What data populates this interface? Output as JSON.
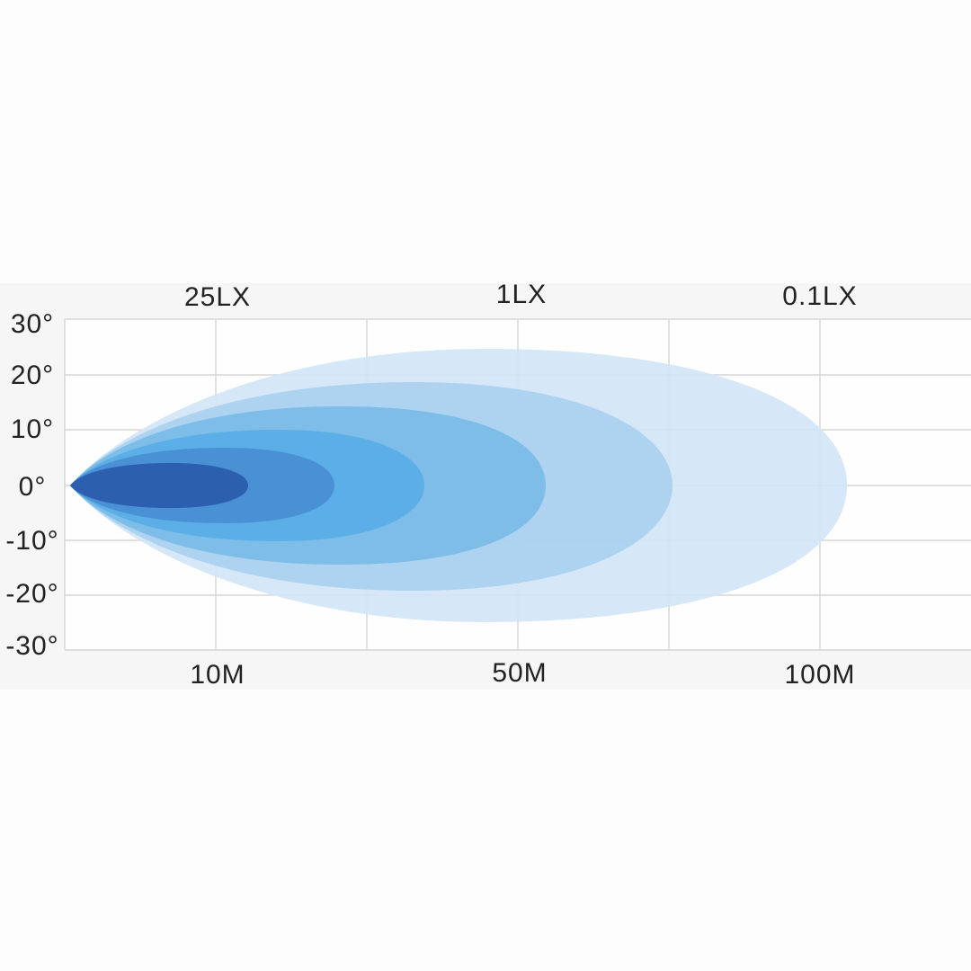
{
  "top_labels": [
    "25LX",
    "1LX",
    "0.1LX"
  ],
  "y_labels": [
    "30°",
    "20°",
    "10°",
    "0°",
    "-10°",
    "-20°",
    "-30°"
  ],
  "bottom_labels": [
    "10M",
    "50M",
    "100M"
  ]
}
